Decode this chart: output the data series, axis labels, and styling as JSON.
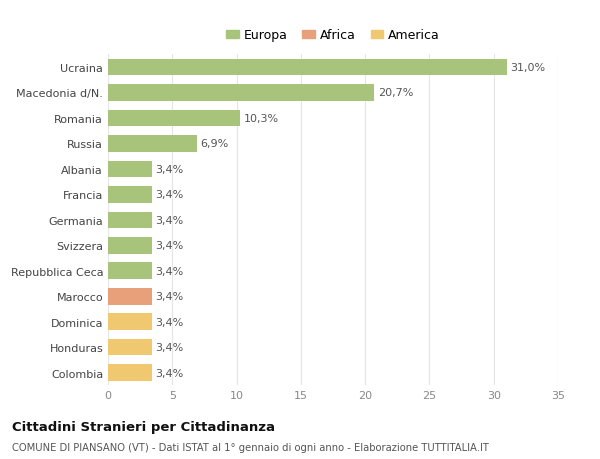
{
  "categories": [
    "Colombia",
    "Honduras",
    "Dominica",
    "Marocco",
    "Repubblica Ceca",
    "Svizzera",
    "Germania",
    "Francia",
    "Albania",
    "Russia",
    "Romania",
    "Macedonia d/N.",
    "Ucraina"
  ],
  "values": [
    3.4,
    3.4,
    3.4,
    3.4,
    3.4,
    3.4,
    3.4,
    3.4,
    3.4,
    6.9,
    10.3,
    20.7,
    31.0
  ],
  "colors": [
    "#f0c870",
    "#f0c870",
    "#f0c870",
    "#e8a07a",
    "#a8c47a",
    "#a8c47a",
    "#a8c47a",
    "#a8c47a",
    "#a8c47a",
    "#a8c47a",
    "#a8c47a",
    "#a8c47a",
    "#a8c47a"
  ],
  "labels": [
    "3,4%",
    "3,4%",
    "3,4%",
    "3,4%",
    "3,4%",
    "3,4%",
    "3,4%",
    "3,4%",
    "3,4%",
    "6,9%",
    "10,3%",
    "20,7%",
    "31,0%"
  ],
  "legend": [
    {
      "label": "Europa",
      "color": "#a8c47a"
    },
    {
      "label": "Africa",
      "color": "#e8a07a"
    },
    {
      "label": "America",
      "color": "#f0c870"
    }
  ],
  "xlim": [
    0,
    35
  ],
  "xticks": [
    0,
    5,
    10,
    15,
    20,
    25,
    30,
    35
  ],
  "title": "Cittadini Stranieri per Cittadinanza",
  "subtitle": "COMUNE DI PIANSANO (VT) - Dati ISTAT al 1° gennaio di ogni anno - Elaborazione TUTTITALIA.IT",
  "background_color": "#ffffff",
  "grid_color": "#e5e5e5",
  "bar_height": 0.65,
  "label_fontsize": 8,
  "ytick_fontsize": 8,
  "xtick_fontsize": 8
}
